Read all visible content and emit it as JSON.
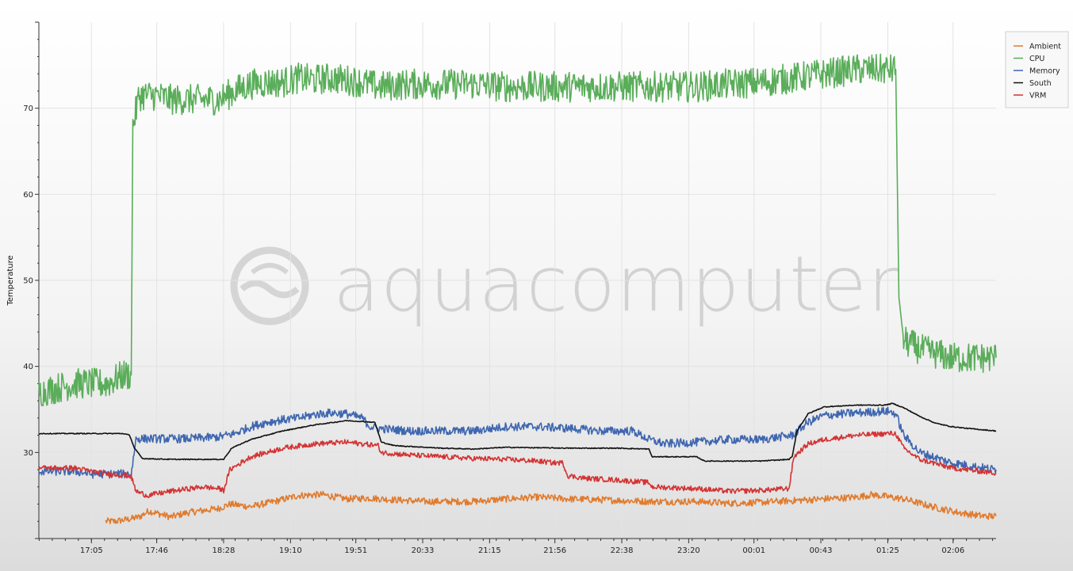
{
  "chart_data": {
    "type": "line",
    "ylabel": "Temperature",
    "xlabel": "",
    "title": "",
    "ylim": [
      20,
      80
    ],
    "yticks": [
      30,
      40,
      50,
      60,
      70
    ],
    "x_tick_labels": [
      "17:05",
      "17:46",
      "18:28",
      "19:10",
      "19:51",
      "20:33",
      "21:15",
      "21:56",
      "22:38",
      "23:20",
      "00:01",
      "00:43",
      "01:25",
      "02:06"
    ],
    "x_tick_minutes": [
      0,
      41,
      83,
      125,
      166,
      208,
      250,
      291,
      333,
      375,
      416,
      458,
      500,
      541
    ],
    "xlim_minutes": [
      -33,
      568
    ],
    "grid": true,
    "legend_position": "top-right",
    "watermark": "aquacomputer",
    "series": [
      {
        "name": "Ambient",
        "color": "#e07b2e",
        "points": [
          [
            9,
            22
          ],
          [
            15,
            22
          ],
          [
            22,
            22.2
          ],
          [
            30,
            22.5
          ],
          [
            36,
            23.2
          ],
          [
            50,
            22.5
          ],
          [
            60,
            23
          ],
          [
            68,
            23.2
          ],
          [
            80,
            23.5
          ],
          [
            87,
            24
          ],
          [
            100,
            23.7
          ],
          [
            115,
            24.3
          ],
          [
            130,
            25
          ],
          [
            145,
            25.1
          ],
          [
            160,
            24.6
          ],
          [
            175,
            24.7
          ],
          [
            190,
            24.5
          ],
          [
            210,
            24.3
          ],
          [
            240,
            24.3
          ],
          [
            260,
            24.6
          ],
          [
            280,
            24.8
          ],
          [
            300,
            24.6
          ],
          [
            320,
            24.5
          ],
          [
            350,
            24.3
          ],
          [
            380,
            24.3
          ],
          [
            400,
            24.1
          ],
          [
            420,
            24.2
          ],
          [
            440,
            24.4
          ],
          [
            460,
            24.6
          ],
          [
            480,
            24.8
          ],
          [
            490,
            25.1
          ],
          [
            510,
            24.6
          ],
          [
            530,
            23.6
          ],
          [
            545,
            23
          ],
          [
            560,
            22.6
          ],
          [
            568,
            22.6
          ]
        ],
        "noise": 0.4
      },
      {
        "name": "CPU",
        "color": "#5aad5a",
        "points": [
          [
            -33,
            37
          ],
          [
            -10,
            38
          ],
          [
            0,
            38
          ],
          [
            10,
            38
          ],
          [
            20,
            39
          ],
          [
            25,
            39
          ],
          [
            26,
            68
          ],
          [
            30,
            71.5
          ],
          [
            40,
            71.5
          ],
          [
            50,
            71
          ],
          [
            60,
            71
          ],
          [
            70,
            71
          ],
          [
            80,
            71
          ],
          [
            90,
            72
          ],
          [
            100,
            72.8
          ],
          [
            110,
            73
          ],
          [
            120,
            73
          ],
          [
            130,
            73.5
          ],
          [
            140,
            73.3
          ],
          [
            150,
            73.5
          ],
          [
            160,
            73.3
          ],
          [
            170,
            73
          ],
          [
            180,
            72.5
          ],
          [
            200,
            72.8
          ],
          [
            220,
            72.8
          ],
          [
            240,
            72.8
          ],
          [
            260,
            72.5
          ],
          [
            280,
            72.5
          ],
          [
            300,
            72.5
          ],
          [
            320,
            72.5
          ],
          [
            340,
            72.5
          ],
          [
            360,
            72.5
          ],
          [
            380,
            72.5
          ],
          [
            400,
            72.8
          ],
          [
            420,
            73
          ],
          [
            440,
            73.5
          ],
          [
            460,
            74
          ],
          [
            480,
            74.5
          ],
          [
            500,
            74.5
          ],
          [
            505,
            74.5
          ],
          [
            507,
            48
          ],
          [
            510,
            43
          ],
          [
            520,
            42
          ],
          [
            540,
            41
          ],
          [
            568,
            41
          ]
        ],
        "noise": 1.8
      },
      {
        "name": "Memory",
        "color": "#3f67b0",
        "points": [
          [
            -33,
            27.8
          ],
          [
            -10,
            27.8
          ],
          [
            0,
            27.5
          ],
          [
            10,
            27.5
          ],
          [
            20,
            27.5
          ],
          [
            25,
            27.5
          ],
          [
            28,
            31.6
          ],
          [
            40,
            31.6
          ],
          [
            60,
            31.6
          ],
          [
            80,
            31.8
          ],
          [
            90,
            32.2
          ],
          [
            100,
            33
          ],
          [
            110,
            33.5
          ],
          [
            120,
            33.8
          ],
          [
            130,
            34
          ],
          [
            140,
            34.4
          ],
          [
            150,
            34.6
          ],
          [
            160,
            34.5
          ],
          [
            170,
            34
          ],
          [
            175,
            33
          ],
          [
            180,
            32.8
          ],
          [
            200,
            32.5
          ],
          [
            220,
            32.5
          ],
          [
            240,
            32.5
          ],
          [
            260,
            33
          ],
          [
            280,
            33
          ],
          [
            300,
            32.8
          ],
          [
            320,
            32.5
          ],
          [
            340,
            32.5
          ],
          [
            350,
            31.5
          ],
          [
            360,
            31
          ],
          [
            380,
            31.2
          ],
          [
            400,
            31.5
          ],
          [
            420,
            31.5
          ],
          [
            440,
            32
          ],
          [
            450,
            33.5
          ],
          [
            460,
            34.3
          ],
          [
            480,
            34.6
          ],
          [
            500,
            34.8
          ],
          [
            505,
            34.5
          ],
          [
            510,
            32
          ],
          [
            520,
            30
          ],
          [
            540,
            28.8
          ],
          [
            560,
            28.2
          ],
          [
            568,
            28
          ]
        ],
        "noise": 0.5
      },
      {
        "name": "South",
        "color": "#111111",
        "points": [
          [
            -33,
            32.2
          ],
          [
            0,
            32.2
          ],
          [
            20,
            32.2
          ],
          [
            24,
            32
          ],
          [
            27,
            30.5
          ],
          [
            32,
            29.3
          ],
          [
            50,
            29.2
          ],
          [
            70,
            29.2
          ],
          [
            80,
            29.2
          ],
          [
            83,
            29.2
          ],
          [
            88,
            30.5
          ],
          [
            100,
            31.5
          ],
          [
            120,
            32.5
          ],
          [
            140,
            33.2
          ],
          [
            160,
            33.7
          ],
          [
            170,
            33.6
          ],
          [
            178,
            33.5
          ],
          [
            182,
            31.2
          ],
          [
            190,
            30.8
          ],
          [
            220,
            30.5
          ],
          [
            240,
            30.4
          ],
          [
            260,
            30.6
          ],
          [
            300,
            30.5
          ],
          [
            330,
            30.5
          ],
          [
            350,
            30.4
          ],
          [
            352,
            29.5
          ],
          [
            380,
            29.5
          ],
          [
            385,
            29
          ],
          [
            400,
            29
          ],
          [
            420,
            29
          ],
          [
            438,
            29.2
          ],
          [
            440,
            29.5
          ],
          [
            443,
            32.5
          ],
          [
            450,
            34.5
          ],
          [
            460,
            35.3
          ],
          [
            480,
            35.5
          ],
          [
            498,
            35.5
          ],
          [
            503,
            35.7
          ],
          [
            510,
            35.2
          ],
          [
            520,
            34.2
          ],
          [
            530,
            33.4
          ],
          [
            540,
            33
          ],
          [
            550,
            32.8
          ],
          [
            568,
            32.5
          ]
        ],
        "noise": 0.05
      },
      {
        "name": "VRM",
        "color": "#d43333",
        "points": [
          [
            -33,
            28.2
          ],
          [
            -10,
            28.2
          ],
          [
            0,
            27.8
          ],
          [
            10,
            27.5
          ],
          [
            20,
            27.4
          ],
          [
            25,
            27.2
          ],
          [
            28,
            25.5
          ],
          [
            35,
            25
          ],
          [
            50,
            25.5
          ],
          [
            70,
            26
          ],
          [
            80,
            25.8
          ],
          [
            83,
            25.6
          ],
          [
            87,
            28
          ],
          [
            100,
            29.5
          ],
          [
            120,
            30.5
          ],
          [
            140,
            31
          ],
          [
            160,
            31.2
          ],
          [
            170,
            31
          ],
          [
            180,
            30.8
          ],
          [
            182,
            30
          ],
          [
            200,
            29.7
          ],
          [
            220,
            29.5
          ],
          [
            240,
            29.3
          ],
          [
            260,
            29.2
          ],
          [
            280,
            29
          ],
          [
            290,
            28.8
          ],
          [
            296,
            28.8
          ],
          [
            299,
            27.3
          ],
          [
            310,
            27
          ],
          [
            330,
            26.8
          ],
          [
            350,
            26.5
          ],
          [
            352,
            26
          ],
          [
            380,
            25.8
          ],
          [
            400,
            25.5
          ],
          [
            420,
            25.6
          ],
          [
            438,
            25.8
          ],
          [
            441,
            29.5
          ],
          [
            450,
            31
          ],
          [
            460,
            31.5
          ],
          [
            480,
            32
          ],
          [
            500,
            32.2
          ],
          [
            505,
            32.2
          ],
          [
            510,
            30.5
          ],
          [
            520,
            29.2
          ],
          [
            540,
            28.2
          ],
          [
            568,
            27.6
          ]
        ],
        "noise": 0.3
      }
    ]
  }
}
